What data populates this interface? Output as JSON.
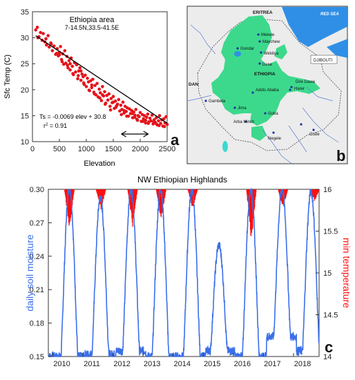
{
  "figure": {
    "panel_letters": [
      "a",
      "b",
      "c"
    ],
    "colors": {
      "scatter_points": "#e4131b",
      "fit_line": "#000000",
      "soil_moisture": "#3b6fe8",
      "min_temperature": "#ff1010",
      "highlands": "#3cd98c",
      "water": "#2f8fe6",
      "rivers": "#5a7fd0"
    }
  },
  "panel_a": {
    "title": "Ethiopia area",
    "subtitle": "7-14.5N,33.5-41.5E",
    "equation": "Ts = -0.0069 elev + 30.8",
    "r2_prefix": "r",
    "r2_sup": "2",
    "r2_suffix": " = 0.91"
  },
  "panel_b": {
    "labels": {
      "eritrea": "ERITREA",
      "red_sea": "RED SEA",
      "djibouti": "DJIBOUTI",
      "ethiopia": "ETHIOPIA",
      "sudan_fragment": "DAN",
      "mekele": "Mekele",
      "maychew": "Maychew",
      "gondar": "Gondar",
      "weldiya": "Weldiya",
      "dese": "Dese",
      "addis_ababa": "Addis Ababa",
      "dire_dawa": "Dire Dawa",
      "harer": "Harer",
      "gambela": "Gambela",
      "jima": "Jima",
      "arba_minch": "Arba Minch",
      "goba": "Goba",
      "negele": "Negele",
      "gode": "Gode"
    }
  },
  "panel_c": {
    "title": "NW Ethiopian Highlands"
  },
  "chart_data": [
    {
      "type": "scatter",
      "title": "Ethiopia area",
      "subtitle": "7-14.5N,33.5-41.5E",
      "xlabel": "Elevation",
      "ylabel": "Sfc Temp (C)",
      "xlim": [
        0,
        2500
      ],
      "ylim": [
        10,
        35
      ],
      "xticks": [
        0,
        500,
        1000,
        1500,
        2000,
        2500
      ],
      "yticks": [
        10,
        15,
        20,
        25,
        30,
        35
      ],
      "grid": false,
      "fit": {
        "slope": -0.0069,
        "intercept": 30.8,
        "r2": 0.91
      },
      "arrow_range": [
        1650,
        2150
      ],
      "series": [
        {
          "values_x": [
            60,
            90,
            120,
            150,
            180,
            200,
            230,
            260,
            290,
            310,
            340,
            370,
            400,
            430,
            460,
            480,
            500,
            520,
            540,
            560,
            580,
            600,
            620,
            640,
            660,
            680,
            700,
            720,
            740,
            760,
            780,
            800,
            820,
            840,
            860,
            880,
            900,
            920,
            940,
            960,
            980,
            1000,
            1020,
            1040,
            1060,
            1080,
            1100,
            1120,
            1140,
            1160,
            1180,
            1200,
            1220,
            1240,
            1260,
            1280,
            1300,
            1320,
            1340,
            1360,
            1380,
            1400,
            1420,
            1440,
            1460,
            1480,
            1500,
            1520,
            1540,
            1560,
            1580,
            1600,
            1620,
            1640,
            1660,
            1680,
            1700,
            1720,
            1740,
            1760,
            1780,
            1800,
            1820,
            1840,
            1860,
            1880,
            1900,
            1920,
            1940,
            1960,
            1980,
            2000,
            2020,
            2040,
            2060,
            2080,
            2100,
            2120,
            2140,
            2160,
            2180,
            2200,
            2220,
            2240,
            2260,
            2280,
            2300,
            2320,
            2340,
            2360,
            2380,
            2400,
            2420,
            2440,
            2460,
            2480,
            2500,
            350,
            450,
            550,
            650,
            750,
            850,
            950,
            1050,
            1150,
            1250,
            1350,
            1450,
            1550,
            1650,
            1750,
            1850,
            1950,
            2050,
            2150,
            2250,
            2350,
            2450,
            100,
            250,
            500,
            700,
            900,
            1100,
            1300,
            1500,
            1700,
            1900,
            2100,
            2300
          ],
          "values_y": [
            31.5,
            32.0,
            30.2,
            31.0,
            29.5,
            30.8,
            29.2,
            28.6,
            30.4,
            28.2,
            29.0,
            27.5,
            28.4,
            26.8,
            27.9,
            26.5,
            27.2,
            28.3,
            25.8,
            26.9,
            24.9,
            27.5,
            25.1,
            26.4,
            24.2,
            25.6,
            23.8,
            26.1,
            24.5,
            22.9,
            25.2,
            23.4,
            24.8,
            22.1,
            23.6,
            24.2,
            21.8,
            23.0,
            22.5,
            21.0,
            22.8,
            20.6,
            22.2,
            21.5,
            19.8,
            21.7,
            20.4,
            22.0,
            19.5,
            20.8,
            19.0,
            21.2,
            18.6,
            20.1,
            19.4,
            17.9,
            20.6,
            18.8,
            19.6,
            17.4,
            18.9,
            18.0,
            19.2,
            16.8,
            18.3,
            17.5,
            18.7,
            16.4,
            17.8,
            16.9,
            17.2,
            18.1,
            15.9,
            17.0,
            16.2,
            17.6,
            15.5,
            16.8,
            15.8,
            16.5,
            14.9,
            16.3,
            15.4,
            16.0,
            14.6,
            15.7,
            15.1,
            16.2,
            14.3,
            15.0,
            14.8,
            15.6,
            13.9,
            15.2,
            14.4,
            15.0,
            13.6,
            14.7,
            15.3,
            13.8,
            14.5,
            14.0,
            15.1,
            13.4,
            14.2,
            13.7,
            14.6,
            13.2,
            14.0,
            15.0,
            13.5,
            14.2,
            13.0,
            14.4,
            13.6,
            14.8,
            13.3,
            28.8,
            27.0,
            25.4,
            24.7,
            23.1,
            22.7,
            21.3,
            19.9,
            19.2,
            18.4,
            17.2,
            16.1,
            16.6,
            15.2,
            14.9,
            15.4,
            14.1,
            13.9,
            13.5,
            13.8,
            13.1,
            12.9,
            30.0,
            29.8,
            26.7,
            25.0,
            23.6,
            20.9,
            19.0,
            17.6,
            16.0,
            14.7,
            14.1,
            13.4
          ]
        }
      ]
    },
    {
      "type": "line",
      "title": "NW Ethiopian Highlands",
      "x_unit": "year",
      "xlim": [
        2009.85,
        2018.85
      ],
      "xticks": [
        2010,
        2011,
        2012,
        2013,
        2014,
        2015,
        2016,
        2017,
        2018
      ],
      "ylabel": "daily soil moisture",
      "ylim": [
        0.15,
        0.3
      ],
      "yticks": [
        0.15,
        0.18,
        0.21,
        0.24,
        0.27,
        0.3
      ],
      "y2label": "min temperature",
      "y2lim": [
        14,
        16
      ],
      "y2ticks": [
        14,
        14.5,
        15,
        15.5,
        16
      ],
      "series": [
        {
          "name": "daily soil moisture",
          "axis": "left",
          "seasonal_peaks": [
            0.302,
            0.293,
            0.3,
            0.3,
            0.3,
            0.25,
            0.3,
            0.3,
            0.298
          ],
          "seasonal_troughs": [
            0.15,
            0.152,
            0.155,
            0.15,
            0.15,
            0.155,
            0.15,
            0.168,
            0.155
          ],
          "peak_years": [
            2010.55,
            2011.58,
            2012.6,
            2013.58,
            2014.62,
            2015.52,
            2016.58,
            2017.62,
            2018.58
          ]
        },
        {
          "name": "min temperature",
          "axis": "right",
          "seasonal_spike_years": [
            2010.55,
            2011.6,
            2012.65,
            2013.6,
            2014.65,
            2016.6,
            2017.65,
            2018.7
          ],
          "spike_bottom_values": [
            15.5,
            15.75,
            15.55,
            15.6,
            15.75,
            15.35,
            15.75,
            15.85
          ],
          "spike_top_value": 16
        }
      ]
    }
  ]
}
